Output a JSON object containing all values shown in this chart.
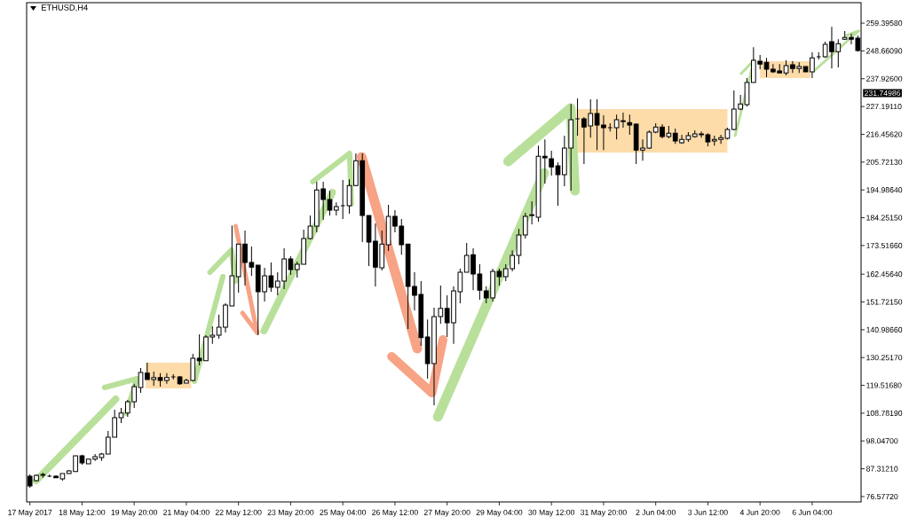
{
  "chart_data": {
    "type": "candlestick",
    "title": "ETHUSD,H4",
    "categories": [
      "17 May 2017",
      null,
      null,
      null,
      null,
      null,
      null,
      null,
      "18 May 12:00",
      null,
      null,
      null,
      null,
      null,
      null,
      null,
      "19 May 20:00",
      null,
      null,
      null,
      null,
      null,
      null,
      null,
      "21 May 04:00",
      null,
      null,
      null,
      null,
      null,
      null,
      null,
      "22 May 12:00",
      null,
      null,
      null,
      null,
      null,
      null,
      null,
      "23 May 20:00",
      null,
      null,
      null,
      null,
      null,
      null,
      null,
      "25 May 04:00",
      null,
      null,
      null,
      null,
      null,
      null,
      null,
      "26 May 12:00",
      null,
      null,
      null,
      null,
      null,
      null,
      null,
      "27 May 20:00",
      null,
      null,
      null,
      null,
      null,
      null,
      null,
      "29 May 04:00",
      null,
      null,
      null,
      null,
      null,
      null,
      null,
      "30 May 12:00",
      null,
      null,
      null,
      null,
      null,
      null,
      null,
      "31 May 20:00",
      null,
      null,
      null,
      null,
      null,
      null,
      null,
      "2 Jun 04:00",
      null,
      null,
      null,
      null,
      null,
      null,
      null,
      "3 Jun 12:00",
      null,
      null,
      null,
      null,
      null,
      null,
      null,
      "4 Jun 20:00",
      null,
      null,
      null,
      null,
      null,
      null,
      null,
      "6 Jun 04:00",
      null,
      null,
      null,
      null,
      null,
      null,
      null
    ],
    "ohlc": [
      [
        84.4,
        85.1,
        80.0,
        80.7
      ],
      [
        82.7,
        85.1,
        82.4,
        84.8
      ],
      [
        84.8,
        85.8,
        83.8,
        85.1
      ],
      [
        84.4,
        85.1,
        84.1,
        84.4
      ],
      [
        84.4,
        84.8,
        83.8,
        83.8
      ],
      [
        83.4,
        85.5,
        82.7,
        85.5
      ],
      [
        85.5,
        86.8,
        85.5,
        86.5
      ],
      [
        86.2,
        92.3,
        86.2,
        92.3
      ],
      [
        92.3,
        92.7,
        88.9,
        89.6
      ],
      [
        89.2,
        91.0,
        89.2,
        91.0
      ],
      [
        91.0,
        93.0,
        90.3,
        92.0
      ],
      [
        91.6,
        93.4,
        90.3,
        93.0
      ],
      [
        93.0,
        101.9,
        93.0,
        99.5
      ],
      [
        99.5,
        110.1,
        99.5,
        107.0
      ],
      [
        107.0,
        110.8,
        105.0,
        108.8
      ],
      [
        108.8,
        113.9,
        107.4,
        113.2
      ],
      [
        113.2,
        120.1,
        110.8,
        119.0
      ],
      [
        118.7,
        126.2,
        116.6,
        124.5
      ],
      [
        124.2,
        128.3,
        121.8,
        121.8
      ],
      [
        121.8,
        124.8,
        119.4,
        122.5
      ],
      [
        122.5,
        124.2,
        119.0,
        121.4
      ],
      [
        121.4,
        124.2,
        120.1,
        122.5
      ],
      [
        122.8,
        123.8,
        121.8,
        122.8
      ],
      [
        122.8,
        123.1,
        119.7,
        120.1
      ],
      [
        120.4,
        122.1,
        120.4,
        121.4
      ],
      [
        121.4,
        131.7,
        121.1,
        130.0
      ],
      [
        130.0,
        139.2,
        127.2,
        129.0
      ],
      [
        129.0,
        138.9,
        129.0,
        138.2
      ],
      [
        138.2,
        142.3,
        135.5,
        138.9
      ],
      [
        138.9,
        146.8,
        137.5,
        142.0
      ],
      [
        142.0,
        151.2,
        139.9,
        150.5
      ],
      [
        150.2,
        181.3,
        150.2,
        161.8
      ],
      [
        161.5,
        174.1,
        155.3,
        174.1
      ],
      [
        174.1,
        179.3,
        158.1,
        167.0
      ],
      [
        167.0,
        173.1,
        161.8,
        165.2
      ],
      [
        165.9,
        165.9,
        138.9,
        155.7
      ],
      [
        155.7,
        164.9,
        151.9,
        161.8
      ],
      [
        161.8,
        167.0,
        155.7,
        157.4
      ],
      [
        157.4,
        163.2,
        154.3,
        159.8
      ],
      [
        159.8,
        172.4,
        156.7,
        168.3
      ],
      [
        168.3,
        169.4,
        162.2,
        164.2
      ],
      [
        164.2,
        167.3,
        161.1,
        166.3
      ],
      [
        166.3,
        179.6,
        166.3,
        176.2
      ],
      [
        176.2,
        185.1,
        175.9,
        181.0
      ],
      [
        181.0,
        198.1,
        178.6,
        195.0
      ],
      [
        195.4,
        198.1,
        183.4,
        191.3
      ],
      [
        191.3,
        194.7,
        185.1,
        187.2
      ],
      [
        187.2,
        190.2,
        185.1,
        188.5
      ],
      [
        188.9,
        198.8,
        183.7,
        188.9
      ],
      [
        188.9,
        199.1,
        185.8,
        196.7
      ],
      [
        196.7,
        209.1,
        196.4,
        206.3
      ],
      [
        206.3,
        209.1,
        174.8,
        185.1
      ],
      [
        185.1,
        185.1,
        165.6,
        174.8
      ],
      [
        175.2,
        182.0,
        157.7,
        165.2
      ],
      [
        164.9,
        179.3,
        163.9,
        174.1
      ],
      [
        173.8,
        189.2,
        171.4,
        184.8
      ],
      [
        184.8,
        187.2,
        178.6,
        181.0
      ],
      [
        181.0,
        183.7,
        170.0,
        173.8
      ],
      [
        174.1,
        174.1,
        141.3,
        157.7
      ],
      [
        157.7,
        163.2,
        148.5,
        154.3
      ],
      [
        154.6,
        159.8,
        134.8,
        137.9
      ],
      [
        138.2,
        145.0,
        122.1,
        127.9
      ],
      [
        127.9,
        149.5,
        111.8,
        146.1
      ],
      [
        146.1,
        158.1,
        143.3,
        149.2
      ],
      [
        149.2,
        154.3,
        138.2,
        143.7
      ],
      [
        143.7,
        157.7,
        135.5,
        156.0
      ],
      [
        155.7,
        164.6,
        151.2,
        163.2
      ],
      [
        163.2,
        174.5,
        163.2,
        169.7
      ],
      [
        170.0,
        172.4,
        156.3,
        162.5
      ],
      [
        162.5,
        166.3,
        152.6,
        156.3
      ],
      [
        156.0,
        157.7,
        151.2,
        153.3
      ],
      [
        153.3,
        164.6,
        151.9,
        163.5
      ],
      [
        163.5,
        164.6,
        158.1,
        161.5
      ],
      [
        161.5,
        166.3,
        159.8,
        164.6
      ],
      [
        164.6,
        171.7,
        163.5,
        169.7
      ],
      [
        169.7,
        180.0,
        166.3,
        177.6
      ],
      [
        177.6,
        186.1,
        176.2,
        184.8
      ],
      [
        185.1,
        190.6,
        181.7,
        185.4
      ],
      [
        184.4,
        212.1,
        182.7,
        208.0
      ],
      [
        208.0,
        214.5,
        197.4,
        207.4
      ],
      [
        207.0,
        210.1,
        200.5,
        203.9
      ],
      [
        204.3,
        205.6,
        188.9,
        200.9
      ],
      [
        200.9,
        215.9,
        196.4,
        211.1
      ],
      [
        211.1,
        228.2,
        194.7,
        222.1
      ],
      [
        222.4,
        230.3,
        215.9,
        222.4
      ],
      [
        222.4,
        223.1,
        205.0,
        219.3
      ],
      [
        219.7,
        230.0,
        215.2,
        224.5
      ],
      [
        224.5,
        230.0,
        210.4,
        220.0
      ],
      [
        220.0,
        223.8,
        210.4,
        219.0
      ],
      [
        219.0,
        220.7,
        217.6,
        219.0
      ],
      [
        219.0,
        224.1,
        214.5,
        222.1
      ],
      [
        221.7,
        224.8,
        219.0,
        221.4
      ],
      [
        221.0,
        224.1,
        216.3,
        220.0
      ],
      [
        220.4,
        220.7,
        205.0,
        210.4
      ],
      [
        210.4,
        214.5,
        206.3,
        211.1
      ],
      [
        211.1,
        218.0,
        210.8,
        217.3
      ],
      [
        217.3,
        220.7,
        216.9,
        219.3
      ],
      [
        219.3,
        220.4,
        214.9,
        215.6
      ],
      [
        215.6,
        219.7,
        214.9,
        216.9
      ],
      [
        216.9,
        218.7,
        212.8,
        213.9
      ],
      [
        213.2,
        216.3,
        212.8,
        214.5
      ],
      [
        214.5,
        217.3,
        213.5,
        215.9
      ],
      [
        215.6,
        218.0,
        215.2,
        216.6
      ],
      [
        216.6,
        217.6,
        215.2,
        216.3
      ],
      [
        216.3,
        216.9,
        211.8,
        213.5
      ],
      [
        213.9,
        215.9,
        212.1,
        214.5
      ],
      [
        214.5,
        216.3,
        212.8,
        215.2
      ],
      [
        214.9,
        219.0,
        214.5,
        218.3
      ],
      [
        218.3,
        233.4,
        218.0,
        226.2
      ],
      [
        226.2,
        231.7,
        225.8,
        228.2
      ],
      [
        227.9,
        238.2,
        227.2,
        236.5
      ],
      [
        236.5,
        250.1,
        236.5,
        245.0
      ],
      [
        244.7,
        247.1,
        241.6,
        243.6
      ],
      [
        244.3,
        246.0,
        238.5,
        241.6
      ],
      [
        241.6,
        243.6,
        240.2,
        240.6
      ],
      [
        240.9,
        243.6,
        240.2,
        240.2
      ],
      [
        240.2,
        245.0,
        239.2,
        243.0
      ],
      [
        243.3,
        244.7,
        240.2,
        241.9
      ],
      [
        241.9,
        244.3,
        240.2,
        242.6
      ],
      [
        242.6,
        242.6,
        240.6,
        240.6
      ],
      [
        240.6,
        248.1,
        238.2,
        246.0
      ],
      [
        246.4,
        248.1,
        245.4,
        246.4
      ],
      [
        246.4,
        252.2,
        246.0,
        251.2
      ],
      [
        252.2,
        258.0,
        241.9,
        248.4
      ],
      [
        248.4,
        253.2,
        242.3,
        251.5
      ],
      [
        253.2,
        256.3,
        252.9,
        253.9
      ],
      [
        253.9,
        255.3,
        251.2,
        253.2
      ],
      [
        253.6,
        254.6,
        248.4,
        248.8
      ]
    ],
    "ylim": [
      74.5,
      267.3
    ],
    "yticks": [
      {
        "value": 76.5772,
        "label": "76.57720"
      },
      {
        "value": 87.3121,
        "label": "87.31210"
      },
      {
        "value": 98.047,
        "label": "98.04700"
      },
      {
        "value": 108.7819,
        "label": "108.78190"
      },
      {
        "value": 119.5168,
        "label": "119.51680"
      },
      {
        "value": 130.2517,
        "label": "130.25170"
      },
      {
        "value": 140.9866,
        "label": "140.98660"
      },
      {
        "value": 151.7215,
        "label": "151.72150"
      },
      {
        "value": 162.4564,
        "label": "162.45640"
      },
      {
        "value": 173.5166,
        "label": "173.51660"
      },
      {
        "value": 184.2515,
        "label": "184.25150"
      },
      {
        "value": 194.9864,
        "label": "194.98640"
      },
      {
        "value": 205.7213,
        "label": "205.72130"
      },
      {
        "value": 216.4562,
        "label": "216.45620"
      },
      {
        "value": 227.1911,
        "label": "227.19110"
      },
      {
        "value": 237.926,
        "label": "237.92600"
      },
      {
        "value": 248.6609,
        "label": "248.66090"
      },
      {
        "value": 259.3958,
        "label": "259.39580"
      }
    ],
    "annotations": [
      "231.74986"
    ]
  }
}
